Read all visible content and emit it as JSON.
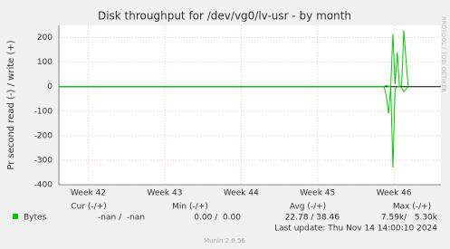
{
  "chart_data": {
    "type": "line",
    "title": "Disk throughput for /dev/vg0/lv-usr - by month",
    "y_label": "Pr second read (-) / write (+)",
    "side_label": "RRDTOOL / TOBI OETIKER",
    "x": [
      0,
      29.8,
      30.0,
      30.2,
      30.4,
      30.6,
      30.8,
      31.0,
      31.2,
      31.4,
      31.6,
      31.8,
      32.0
    ],
    "series": [
      {
        "name": "Bytes",
        "color": "#00cc00",
        "values": [
          0,
          0,
          5,
          0,
          0,
          215,
          10,
          140,
          0,
          5,
          230,
          110,
          0
        ],
        "read_values": [
          0,
          0,
          -40,
          -110,
          0,
          -330,
          -10,
          0,
          0,
          -5,
          -20,
          -10,
          0
        ]
      }
    ],
    "xlim": [
      0,
      35
    ],
    "xticks": [
      {
        "value": 2.7,
        "label": "Week 42"
      },
      {
        "value": 9.7,
        "label": "Week 43"
      },
      {
        "value": 16.7,
        "label": "Week 44"
      },
      {
        "value": 23.7,
        "label": "Week 45"
      },
      {
        "value": 30.7,
        "label": "Week 46"
      }
    ],
    "ylim": [
      -400,
      250
    ],
    "yticks": [
      -400,
      -300,
      -200,
      -100,
      0,
      100,
      200
    ],
    "grid": true,
    "legend_table": {
      "headers": [
        "Cur (-/+)",
        "Min (-/+)",
        "Avg (-/+)",
        "Max (-/+)"
      ],
      "row": [
        "Bytes",
        "-nan /  -nan",
        "0.00 /  0.00",
        "22.78 / 38.46",
        "7.59k/   5.30k"
      ]
    },
    "last_update": "Last update: Thu Nov 14 14:00:10 2024",
    "footer": "Munin 2.0.56"
  }
}
